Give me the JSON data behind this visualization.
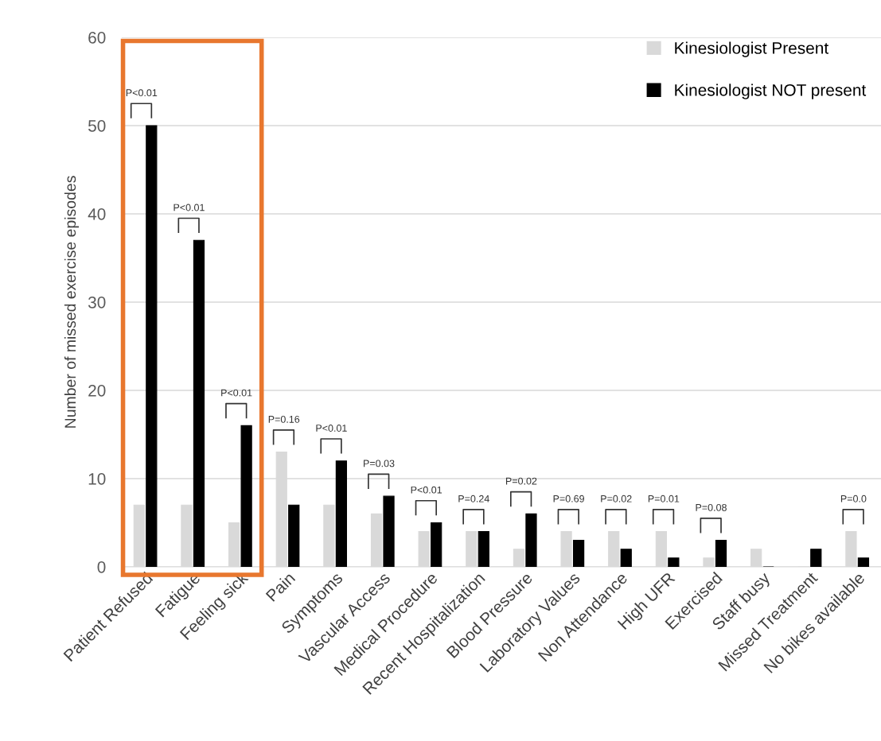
{
  "chart_data": {
    "type": "bar",
    "ylabel": "Number of missed exercise episodes",
    "categories": [
      "Patient Refused",
      "Fatigue",
      "Feeling sick",
      "Pain",
      "Symptoms",
      "Vascular Access",
      "Medical Procedure",
      "Recent Hospitalization",
      "Blood Pressure",
      "Laboratory Values",
      "Non Attendance",
      "High UFR",
      "Exercised",
      "Staff busy",
      "Missed Treatment",
      "No bikes available"
    ],
    "series": [
      {
        "name": "Kinesiologist Present",
        "color": "#d9d9d9",
        "values": [
          7,
          7,
          5,
          13,
          7,
          6,
          4,
          4,
          2,
          4,
          4,
          4,
          1,
          2,
          0,
          4
        ]
      },
      {
        "name": "Kinesiologist NOT present",
        "color": "#000000",
        "values": [
          50,
          37,
          16,
          7,
          12,
          8,
          5,
          4,
          6,
          3,
          2,
          1,
          3,
          0,
          2,
          1
        ]
      }
    ],
    "ylim": [
      0,
      60
    ],
    "yticks": [
      0,
      10,
      20,
      30,
      40,
      50,
      60
    ],
    "grid": "y",
    "legend": "top right",
    "annotations": [
      {
        "text": "P<0.01",
        "x": "Patient Refused",
        "y": 50
      },
      {
        "text": "P<0.01",
        "x": "Fatigue",
        "y": 37
      },
      {
        "text": "P<0.01",
        "x": "Feeling sick",
        "y": 16
      },
      {
        "text": "P=0.16",
        "x": "Pain",
        "y": 13
      },
      {
        "text": "P<0.01",
        "x": "Symptoms",
        "y": 12
      },
      {
        "text": "P=0.03",
        "x": "Vascular Access",
        "y": 8
      },
      {
        "text": "P<0.01",
        "x": "Medical Procedure",
        "y": 5
      },
      {
        "text": "P=0.24",
        "x": "Recent Hospitalization",
        "y": 4
      },
      {
        "text": "P=0.02",
        "x": "Blood Pressure",
        "y": 6
      },
      {
        "text": "P=0.69",
        "x": "Laboratory Values",
        "y": 4
      },
      {
        "text": "P=0.02",
        "x": "Non Attendance",
        "y": 4
      },
      {
        "text": "P=0.01",
        "x": "High UFR",
        "y": 4
      },
      {
        "text": "P=0.08",
        "x": "Exercised",
        "y": 3
      },
      {
        "text": "P=0.0",
        "x": "No bikes available",
        "y": 4
      }
    ]
  }
}
